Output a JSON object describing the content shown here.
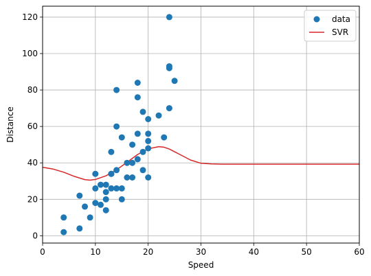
{
  "chart_data": {
    "type": "scatter",
    "xlabel": "Speed",
    "ylabel": "Distance",
    "xlim": [
      0,
      60
    ],
    "ylim": [
      -4,
      126
    ],
    "x_ticks": [
      0,
      10,
      20,
      30,
      40,
      50,
      60
    ],
    "y_ticks": [
      0,
      20,
      40,
      60,
      80,
      100,
      120
    ],
    "grid": true,
    "legend_position": "top-right",
    "series": [
      {
        "name": "data",
        "kind": "scatter",
        "color": "#1f77b4",
        "points": [
          [
            4,
            2
          ],
          [
            4,
            10
          ],
          [
            7,
            4
          ],
          [
            7,
            22
          ],
          [
            8,
            16
          ],
          [
            9,
            10
          ],
          [
            10,
            18
          ],
          [
            10,
            26
          ],
          [
            10,
            34
          ],
          [
            11,
            17
          ],
          [
            11,
            28
          ],
          [
            12,
            14
          ],
          [
            12,
            20
          ],
          [
            12,
            24
          ],
          [
            12,
            28
          ],
          [
            13,
            26
          ],
          [
            13,
            34
          ],
          [
            13,
            34
          ],
          [
            13,
            46
          ],
          [
            14,
            26
          ],
          [
            14,
            36
          ],
          [
            14,
            60
          ],
          [
            14,
            80
          ],
          [
            15,
            20
          ],
          [
            15,
            26
          ],
          [
            15,
            54
          ],
          [
            16,
            32
          ],
          [
            16,
            40
          ],
          [
            17,
            32
          ],
          [
            17,
            40
          ],
          [
            17,
            50
          ],
          [
            18,
            42
          ],
          [
            18,
            56
          ],
          [
            18,
            76
          ],
          [
            18,
            84
          ],
          [
            19,
            36
          ],
          [
            19,
            46
          ],
          [
            19,
            68
          ],
          [
            20,
            32
          ],
          [
            20,
            48
          ],
          [
            20,
            52
          ],
          [
            20,
            56
          ],
          [
            20,
            64
          ],
          [
            22,
            66
          ],
          [
            23,
            54
          ],
          [
            24,
            70
          ],
          [
            24,
            92
          ],
          [
            24,
            93
          ],
          [
            24,
            120
          ],
          [
            25,
            85
          ]
        ]
      },
      {
        "name": "SVR",
        "kind": "line",
        "color": "#d62728",
        "points": [
          [
            0,
            37.6
          ],
          [
            2,
            36.6
          ],
          [
            4,
            34.9
          ],
          [
            6,
            32.6
          ],
          [
            8,
            30.8
          ],
          [
            9,
            30.5
          ],
          [
            10,
            30.9
          ],
          [
            12,
            32.9
          ],
          [
            14,
            36.2
          ],
          [
            16,
            40.3
          ],
          [
            18,
            44.6
          ],
          [
            20,
            47.7
          ],
          [
            22,
            48.9
          ],
          [
            23,
            48.6
          ],
          [
            24,
            47.6
          ],
          [
            26,
            44.6
          ],
          [
            28,
            41.6
          ],
          [
            30,
            39.8
          ],
          [
            32,
            39.4
          ],
          [
            34,
            39.3
          ],
          [
            36,
            39.3
          ],
          [
            40,
            39.3
          ],
          [
            45,
            39.3
          ],
          [
            50,
            39.3
          ],
          [
            55,
            39.3
          ],
          [
            60,
            39.3
          ]
        ]
      }
    ]
  }
}
